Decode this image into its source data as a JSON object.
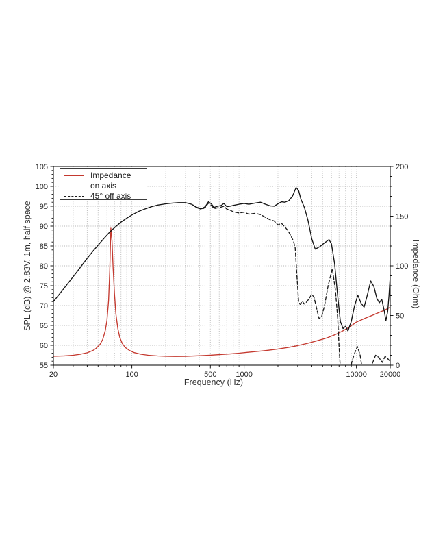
{
  "page": {
    "background": "#ffffff"
  },
  "chart_data": {
    "type": "line",
    "title": "",
    "xlabel": "Frequency (Hz)",
    "ylabel_left": "SPL (dB) @ 2.83V, 1m, half space",
    "ylabel_right": "Impedance (Ohm)",
    "x_scale": "log",
    "x_range": [
      20,
      20000
    ],
    "y_left_range": [
      55,
      105
    ],
    "y_left_major_step": 5,
    "y_left_minor_step": 1,
    "y_right_range": [
      0,
      200
    ],
    "y_right_major_step": 50,
    "y_right_minor_step": 10,
    "x_tick_labels": [
      "20",
      "100",
      "500",
      "1000",
      "10000",
      "20000"
    ],
    "x_tick_label_values": [
      20,
      100,
      500,
      1000,
      10000,
      20000
    ],
    "grid": "dotted",
    "legend": {
      "position": "top-left",
      "entries": [
        {
          "label": "Impedance",
          "style": "solid",
          "color": "#c4392f"
        },
        {
          "label": "on axis",
          "style": "solid",
          "color": "#1a1a1a"
        },
        {
          "label": "45° off axis",
          "style": "dashed",
          "color": "#1a1a1a"
        }
      ]
    },
    "series": [
      {
        "name": "Impedance",
        "axis": "right",
        "unit": "Ohm",
        "color": "#c4392f",
        "style": "solid",
        "points": [
          [
            20,
            9
          ],
          [
            25,
            9.4
          ],
          [
            30,
            10
          ],
          [
            35,
            11.1
          ],
          [
            40,
            12.5
          ],
          [
            45,
            14.8
          ],
          [
            48,
            17
          ],
          [
            52,
            21
          ],
          [
            55,
            26
          ],
          [
            58,
            35
          ],
          [
            60,
            45
          ],
          [
            62,
            65
          ],
          [
            63.5,
            95
          ],
          [
            65,
            138
          ],
          [
            66.5,
            125
          ],
          [
            68,
            98
          ],
          [
            70,
            72
          ],
          [
            72,
            52
          ],
          [
            75,
            37
          ],
          [
            78,
            28
          ],
          [
            82,
            22
          ],
          [
            87,
            18
          ],
          [
            95,
            14.8
          ],
          [
            105,
            12.6
          ],
          [
            120,
            11
          ],
          [
            140,
            10
          ],
          [
            170,
            9.3
          ],
          [
            200,
            9
          ],
          [
            250,
            8.8
          ],
          [
            300,
            8.9
          ],
          [
            400,
            9.5
          ],
          [
            500,
            10.1
          ],
          [
            600,
            10.6
          ],
          [
            750,
            11.3
          ],
          [
            900,
            12.1
          ],
          [
            1100,
            13
          ],
          [
            1300,
            13.8
          ],
          [
            1600,
            14.9
          ],
          [
            2000,
            16.3
          ],
          [
            2500,
            18
          ],
          [
            3000,
            19.7
          ],
          [
            3700,
            22.1
          ],
          [
            4500,
            24.7
          ],
          [
            5500,
            27.6
          ],
          [
            6500,
            30.8
          ],
          [
            7500,
            34.3
          ],
          [
            8700,
            38.5
          ],
          [
            10000,
            43.4
          ],
          [
            11800,
            47
          ],
          [
            13900,
            50.3
          ],
          [
            16000,
            53.2
          ],
          [
            17800,
            55.4
          ],
          [
            20000,
            58.4
          ]
        ]
      },
      {
        "name": "45° off axis",
        "axis": "left",
        "unit": "dB",
        "color": "#1a1a1a",
        "style": "dashed",
        "points": [
          [
            350,
            95.3
          ],
          [
            380,
            94.6
          ],
          [
            420,
            94.2
          ],
          [
            450,
            94.7
          ],
          [
            480,
            95.8
          ],
          [
            510,
            95.2
          ],
          [
            540,
            94.4
          ],
          [
            580,
            94.6
          ],
          [
            625,
            94.8
          ],
          [
            660,
            95
          ],
          [
            700,
            94.3
          ],
          [
            750,
            94
          ],
          [
            800,
            93.6
          ],
          [
            900,
            93.3
          ],
          [
            1000,
            93.5
          ],
          [
            1100,
            93
          ],
          [
            1250,
            93.2
          ],
          [
            1400,
            92.9
          ],
          [
            1550,
            92.2
          ],
          [
            1700,
            91.6
          ],
          [
            1850,
            91.3
          ],
          [
            2000,
            90.3
          ],
          [
            2150,
            90.7
          ],
          [
            2300,
            89.8
          ],
          [
            2450,
            88.9
          ],
          [
            2600,
            87.6
          ],
          [
            2750,
            86.2
          ],
          [
            2850,
            84.5
          ],
          [
            2950,
            77.5
          ],
          [
            3050,
            71.2
          ],
          [
            3150,
            70.3
          ],
          [
            3300,
            71.1
          ],
          [
            3420,
            70.4
          ],
          [
            3600,
            70.9
          ],
          [
            3800,
            71.8
          ],
          [
            4000,
            72.9
          ],
          [
            4200,
            72
          ],
          [
            4400,
            69.5
          ],
          [
            4650,
            66.7
          ],
          [
            4900,
            67.2
          ],
          [
            5200,
            70
          ],
          [
            5600,
            75
          ],
          [
            6100,
            79.3
          ],
          [
            6500,
            74
          ],
          [
            6800,
            67
          ],
          [
            7000,
            60
          ],
          [
            7200,
            54
          ],
          [
            8700,
            53
          ],
          [
            9100,
            55.8
          ],
          [
            9600,
            57.9
          ],
          [
            10200,
            59.7
          ],
          [
            10800,
            57.5
          ],
          [
            11200,
            54.5
          ],
          [
            11600,
            52.5
          ],
          [
            13300,
            52.5
          ],
          [
            13800,
            55.3
          ],
          [
            14800,
            57.5
          ],
          [
            15800,
            57
          ],
          [
            16500,
            56.2
          ],
          [
            17000,
            55.7
          ],
          [
            18000,
            57.2
          ],
          [
            18800,
            56.8
          ],
          [
            19600,
            56.2
          ]
        ]
      },
      {
        "name": "on axis",
        "axis": "left",
        "unit": "dB",
        "color": "#141414",
        "style": "solid",
        "points": [
          [
            20,
            71
          ],
          [
            24,
            73.8
          ],
          [
            28,
            76.2
          ],
          [
            32,
            78.3
          ],
          [
            36,
            80.2
          ],
          [
            40,
            81.9
          ],
          [
            45,
            83.7
          ],
          [
            50,
            85.2
          ],
          [
            56,
            86.8
          ],
          [
            63,
            88.4
          ],
          [
            70,
            89.6
          ],
          [
            80,
            91
          ],
          [
            90,
            92
          ],
          [
            100,
            92.8
          ],
          [
            115,
            93.7
          ],
          [
            130,
            94.3
          ],
          [
            150,
            94.9
          ],
          [
            170,
            95.3
          ],
          [
            200,
            95.6
          ],
          [
            230,
            95.8
          ],
          [
            260,
            95.9
          ],
          [
            300,
            95.9
          ],
          [
            340,
            95.5
          ],
          [
            380,
            94.7
          ],
          [
            420,
            94.4
          ],
          [
            450,
            94.9
          ],
          [
            480,
            96.1
          ],
          [
            510,
            95.6
          ],
          [
            540,
            94.7
          ],
          [
            580,
            95
          ],
          [
            625,
            95.2
          ],
          [
            660,
            95.7
          ],
          [
            700,
            94.9
          ],
          [
            750,
            95
          ],
          [
            800,
            95.2
          ],
          [
            900,
            95.5
          ],
          [
            1000,
            95.7
          ],
          [
            1100,
            95.5
          ],
          [
            1250,
            95.8
          ],
          [
            1400,
            96
          ],
          [
            1550,
            95.5
          ],
          [
            1700,
            95.1
          ],
          [
            1850,
            95
          ],
          [
            2000,
            95.6
          ],
          [
            2150,
            96.1
          ],
          [
            2300,
            96
          ],
          [
            2500,
            96.4
          ],
          [
            2700,
            97.6
          ],
          [
            2900,
            99.7
          ],
          [
            3050,
            99
          ],
          [
            3200,
            96.8
          ],
          [
            3450,
            94.6
          ],
          [
            3700,
            91.5
          ],
          [
            4000,
            86.8
          ],
          [
            4300,
            84.2
          ],
          [
            4700,
            84.8
          ],
          [
            5200,
            85.8
          ],
          [
            5700,
            86.6
          ],
          [
            6000,
            85.5
          ],
          [
            6400,
            80.5
          ],
          [
            6800,
            72.5
          ],
          [
            7200,
            66
          ],
          [
            7600,
            64.2
          ],
          [
            8000,
            64.8
          ],
          [
            8400,
            63.6
          ],
          [
            9000,
            66
          ],
          [
            9600,
            69.8
          ],
          [
            10300,
            72.6
          ],
          [
            11000,
            70.6
          ],
          [
            11700,
            69.6
          ],
          [
            12500,
            72.6
          ],
          [
            13400,
            76.2
          ],
          [
            14300,
            74.8
          ],
          [
            15200,
            71.8
          ],
          [
            16000,
            70.7
          ],
          [
            16800,
            71.6
          ],
          [
            17600,
            69
          ],
          [
            18300,
            66.2
          ],
          [
            19000,
            68.5
          ],
          [
            19500,
            72.5
          ],
          [
            20000,
            77.4
          ]
        ]
      }
    ],
    "colors": {
      "grid": "#b5b5b5",
      "axis_frame": "#000000",
      "tick_label": "#262626",
      "axis_title": "#333333",
      "impedance_line": "#c4392f",
      "spl_line": "#141414"
    }
  }
}
